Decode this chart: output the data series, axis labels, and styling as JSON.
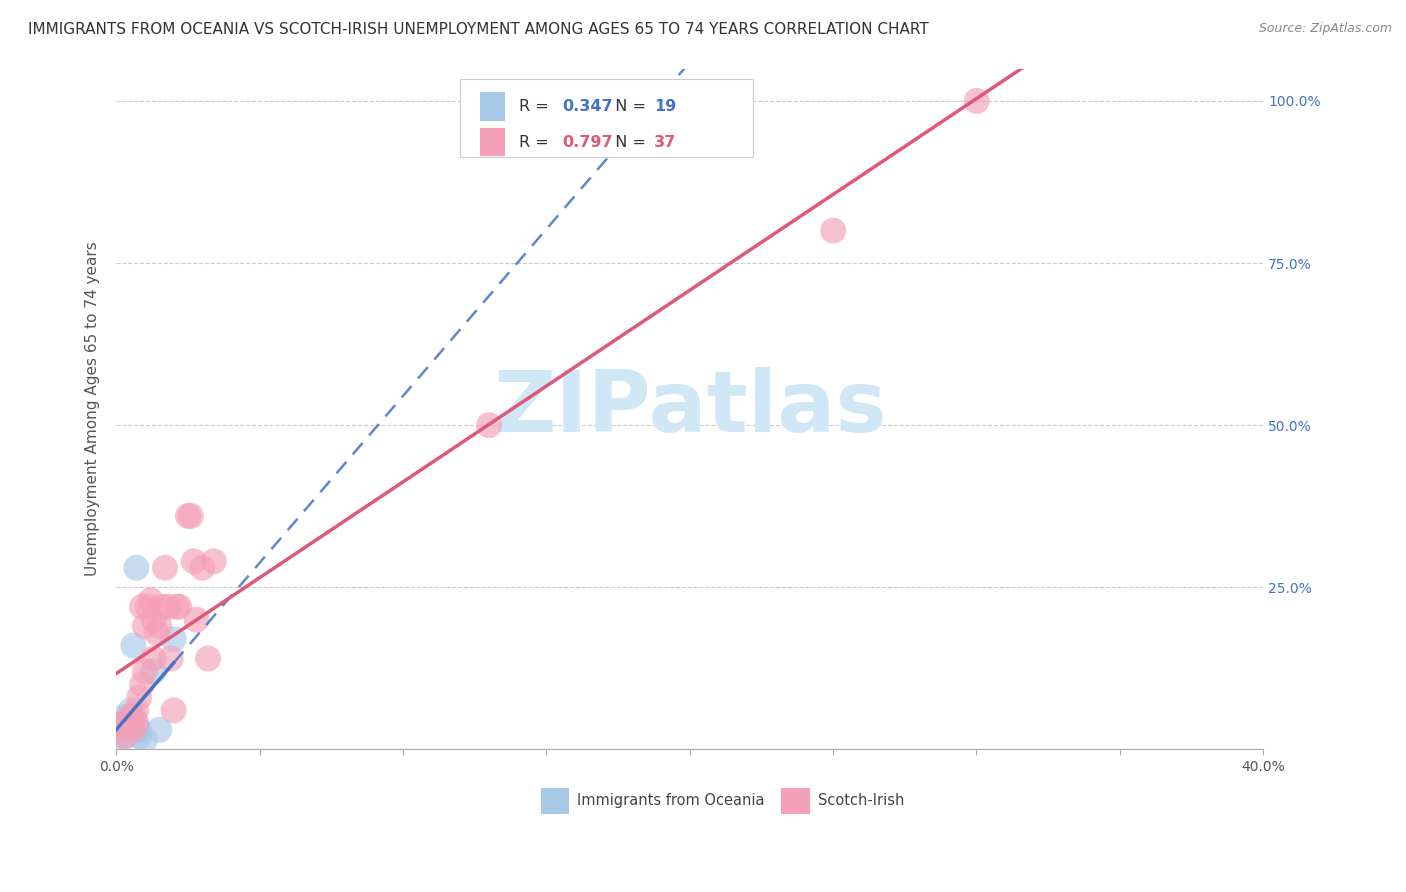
{
  "title": "IMMIGRANTS FROM OCEANIA VS SCOTCH-IRISH UNEMPLOYMENT AMONG AGES 65 TO 74 YEARS CORRELATION CHART",
  "source": "Source: ZipAtlas.com",
  "ylabel": "Unemployment Among Ages 65 to 74 years",
  "xlim": [
    0.0,
    0.4
  ],
  "ylim": [
    0.0,
    1.05
  ],
  "xticks": [
    0.0,
    0.05,
    0.1,
    0.15,
    0.2,
    0.25,
    0.3,
    0.35,
    0.4
  ],
  "xticklabels": [
    "0.0%",
    "",
    "",
    "",
    "",
    "",
    "",
    "",
    "40.0%"
  ],
  "yticks_right": [
    0.0,
    0.25,
    0.5,
    0.75,
    1.0
  ],
  "yticklabels_right": [
    "",
    "25.0%",
    "50.0%",
    "75.0%",
    "100.0%"
  ],
  "blue_R": 0.347,
  "blue_N": 19,
  "pink_R": 0.797,
  "pink_N": 37,
  "blue_color": "#A8C8E8",
  "pink_color": "#F4A0B8",
  "blue_line_color": "#4472C4",
  "pink_line_color": "#E05878",
  "legend_label_blue": "Immigrants from Oceania",
  "legend_label_pink": "Scotch-Irish",
  "blue_x": [
    0.001,
    0.002,
    0.002,
    0.003,
    0.003,
    0.003,
    0.004,
    0.004,
    0.005,
    0.005,
    0.006,
    0.007,
    0.007,
    0.008,
    0.008,
    0.01,
    0.013,
    0.015,
    0.02
  ],
  "blue_y": [
    0.02,
    0.03,
    0.04,
    0.02,
    0.03,
    0.05,
    0.03,
    0.04,
    0.05,
    0.06,
    0.16,
    0.28,
    0.03,
    0.02,
    0.03,
    0.015,
    0.12,
    0.03,
    0.17
  ],
  "pink_x": [
    0.001,
    0.002,
    0.003,
    0.003,
    0.005,
    0.006,
    0.006,
    0.007,
    0.007,
    0.008,
    0.009,
    0.009,
    0.01,
    0.01,
    0.011,
    0.012,
    0.013,
    0.013,
    0.014,
    0.015,
    0.016,
    0.017,
    0.018,
    0.019,
    0.02,
    0.021,
    0.022,
    0.025,
    0.026,
    0.027,
    0.028,
    0.03,
    0.032,
    0.034,
    0.13,
    0.25,
    0.3
  ],
  "pink_y": [
    0.03,
    0.04,
    0.02,
    0.04,
    0.05,
    0.03,
    0.05,
    0.04,
    0.06,
    0.08,
    0.1,
    0.22,
    0.12,
    0.19,
    0.22,
    0.23,
    0.2,
    0.14,
    0.18,
    0.19,
    0.22,
    0.28,
    0.22,
    0.14,
    0.06,
    0.22,
    0.22,
    0.36,
    0.36,
    0.29,
    0.2,
    0.28,
    0.14,
    0.29,
    0.5,
    0.8,
    1.0
  ],
  "watermark_text": "ZIPatlas",
  "watermark_color": "#D0E8F5",
  "background_color": "#FFFFFF",
  "grid_color": "#CCCCCC",
  "title_fontsize": 11,
  "axis_label_fontsize": 11,
  "tick_fontsize": 10,
  "right_tick_color": "#4472C4",
  "blue_line_solid_end": 0.15,
  "blue_line_intercept": 0.01,
  "blue_line_slope": 1.0,
  "pink_line_intercept": -0.02,
  "pink_line_slope": 3.1
}
